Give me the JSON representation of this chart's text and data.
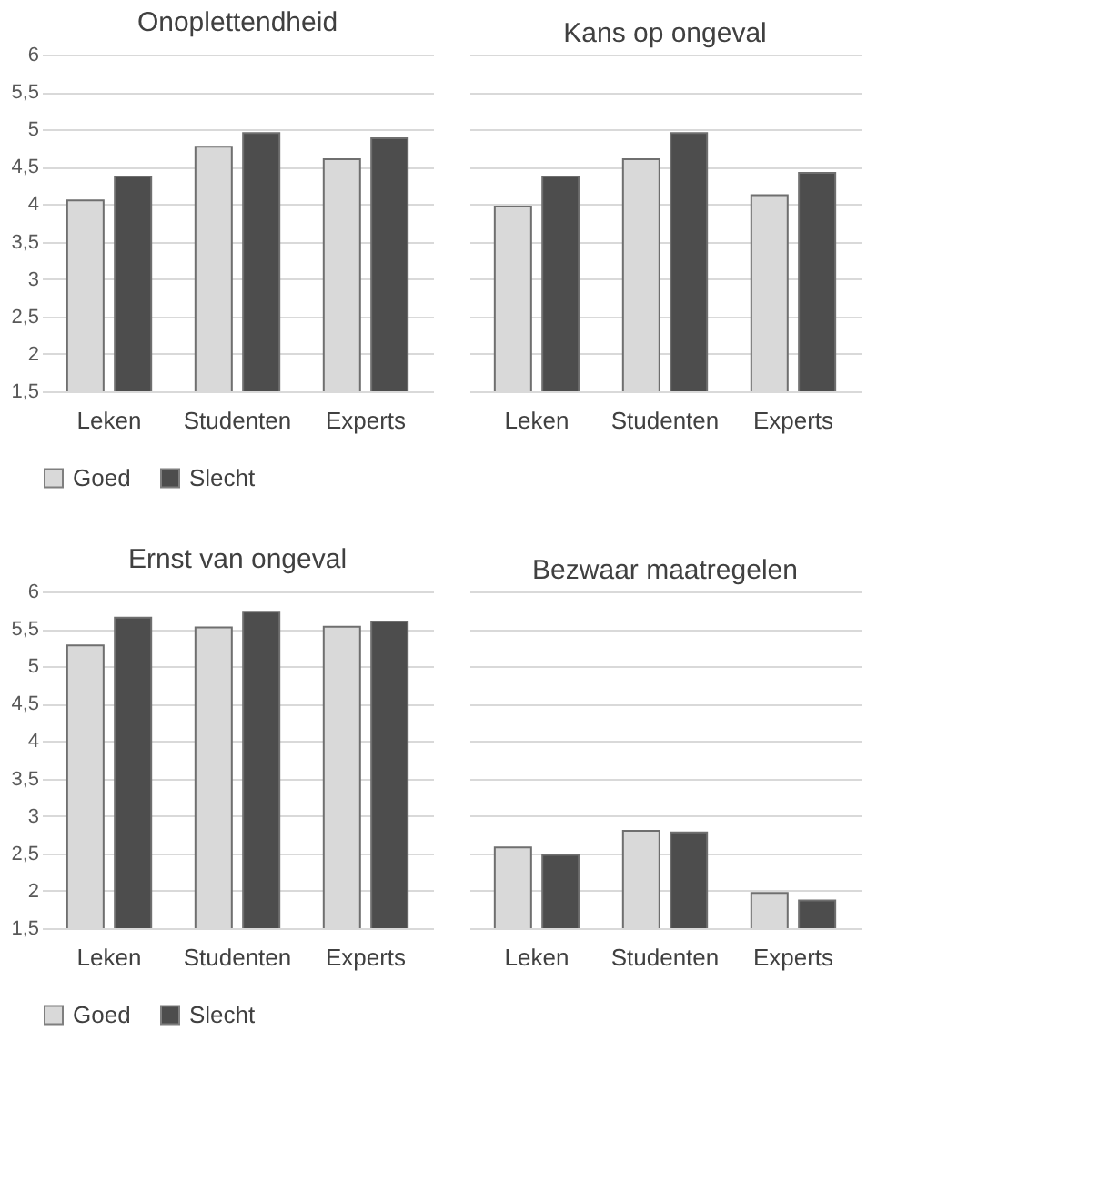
{
  "chart_data": [
    {
      "type": "bar",
      "title": "Onoplettendheid",
      "categories": [
        "Leken",
        "Studenten",
        "Experts"
      ],
      "series": [
        {
          "name": "Goed",
          "color": "#d9d9d9",
          "values": [
            4.05,
            4.77,
            4.6
          ]
        },
        {
          "name": "Slecht",
          "color": "#4d4d4d",
          "values": [
            4.37,
            4.95,
            4.88
          ]
        }
      ],
      "ylim": [
        1.5,
        6
      ],
      "yticks": [
        {
          "value": 1.5,
          "label": "1,5"
        },
        2,
        {
          "value": 2.5,
          "label": "2,5"
        },
        3,
        {
          "value": 3.5,
          "label": "3,5"
        },
        4,
        {
          "value": 4.5,
          "label": "4,5"
        },
        5,
        {
          "value": 5.5,
          "label": "5,5"
        },
        6
      ],
      "grid": "y",
      "legend": "bottom"
    },
    {
      "type": "bar",
      "title": "Kans op ongeval",
      "categories": [
        "Leken",
        "Studenten",
        "Experts"
      ],
      "series": [
        {
          "color": "#d9d9d9",
          "values": [
            3.97,
            4.6,
            4.12
          ]
        },
        {
          "color": "#4d4d4d",
          "values": [
            4.37,
            4.95,
            4.42
          ]
        }
      ],
      "ylim": [
        1.5,
        6
      ],
      "yticks": [
        1.5,
        2,
        2.5,
        3,
        3.5,
        4,
        4.5,
        5,
        5.5,
        6
      ],
      "grid": "y",
      "tick_labels": "x"
    },
    {
      "type": "bar",
      "title": "Ernst van ongeval",
      "categories": [
        "Leken",
        "Studenten",
        "Experts"
      ],
      "series": [
        {
          "name": "Goed",
          "color": "#d9d9d9",
          "values": [
            5.28,
            5.52,
            5.53
          ]
        },
        {
          "name": "Slecht",
          "color": "#4d4d4d",
          "values": [
            5.65,
            5.73,
            5.6
          ]
        }
      ],
      "ylim": [
        1.5,
        6
      ],
      "yticks": [
        {
          "value": 1.5,
          "label": "1,5"
        },
        2,
        {
          "value": 2.5,
          "label": "2,5"
        },
        3,
        {
          "value": 3.5,
          "label": "3,5"
        },
        4,
        {
          "value": 4.5,
          "label": "4,5"
        },
        5,
        {
          "value": 5.5,
          "label": "5,5"
        },
        6
      ],
      "grid": "y",
      "legend": "bottom"
    },
    {
      "type": "bar",
      "title": "Bezwaar maatregelen",
      "categories": [
        "Leken",
        "Studenten",
        "Experts"
      ],
      "series": [
        {
          "color": "#d9d9d9",
          "values": [
            2.58,
            2.8,
            1.97
          ]
        },
        {
          "color": "#4d4d4d",
          "values": [
            2.48,
            2.78,
            1.87
          ]
        }
      ],
      "ylim": [
        1.5,
        6
      ],
      "yticks": [
        1.5,
        2,
        2.5,
        3,
        3.5,
        4,
        4.5,
        5,
        5.5,
        6
      ],
      "grid": "y",
      "tick_labels": "x"
    }
  ]
}
